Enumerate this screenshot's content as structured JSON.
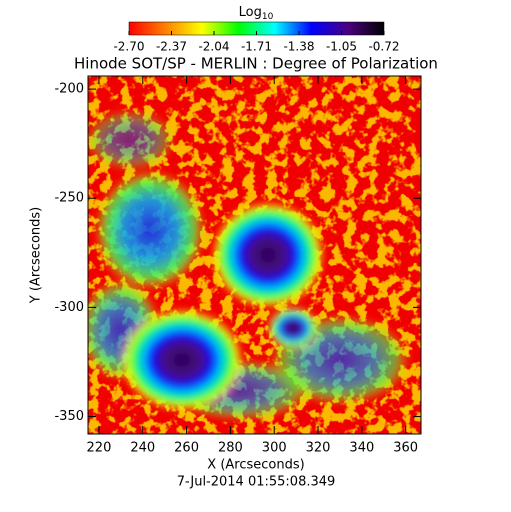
{
  "chart_data": {
    "type": "image",
    "title": "Hinode SOT/SP - MERLIN : Degree of Polarization",
    "xlabel": "X (Arcseconds)",
    "ylabel": "Y (Arcseconds)",
    "footer": "7-Jul-2014 01:55:08.349",
    "xlim": [
      215,
      367
    ],
    "xticks": [
      220,
      240,
      260,
      280,
      300,
      320,
      340,
      360
    ],
    "ylim": [
      -358,
      -194
    ],
    "yticks": [
      -200,
      -250,
      -300,
      -350
    ],
    "colorbar": {
      "title": "Log",
      "title_sub": "10",
      "lim": [
        -2.7,
        -0.72
      ],
      "ticks": [
        {
          "value": -2.7,
          "label": "-2.70"
        },
        {
          "value": -2.37,
          "label": "-2.37"
        },
        {
          "value": -2.04,
          "label": "-2.04"
        },
        {
          "value": -1.71,
          "label": "-1.71"
        },
        {
          "value": -1.38,
          "label": "-1.38"
        },
        {
          "value": -1.05,
          "label": "-1.05"
        },
        {
          "value": -0.72,
          "label": "-0.72"
        }
      ],
      "colors": [
        "#ff0000",
        "#ff7f00",
        "#ffff00",
        "#00ff00",
        "#00ffff",
        "#0000ff",
        "#4b0082",
        "#000000"
      ]
    }
  }
}
